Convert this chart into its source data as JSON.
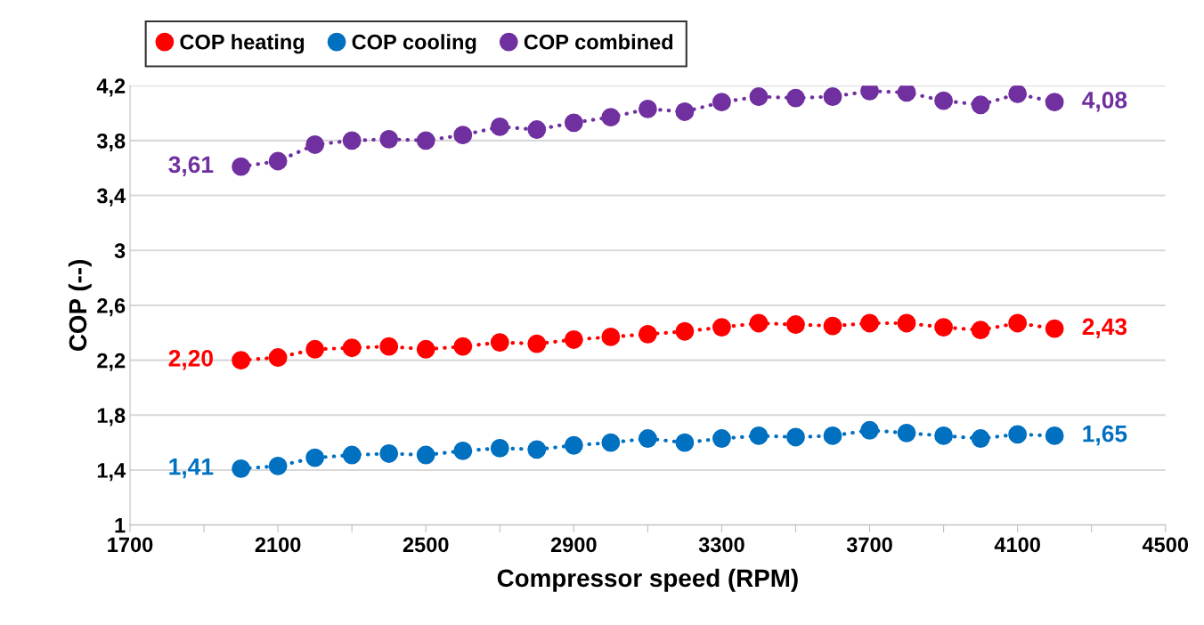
{
  "chart_data": {
    "type": "line",
    "xlabel": "Compressor speed (RPM)",
    "ylabel": "COP (--)",
    "x": [
      2000,
      2100,
      2200,
      2300,
      2400,
      2500,
      2600,
      2700,
      2800,
      2900,
      3000,
      3100,
      3200,
      3300,
      3400,
      3500,
      3600,
      3700,
      3800,
      3900,
      4000,
      4100,
      4200
    ],
    "series": [
      {
        "name": "COP heating",
        "color": "#ff0000",
        "values": [
          2.2,
          2.22,
          2.28,
          2.29,
          2.3,
          2.28,
          2.3,
          2.33,
          2.32,
          2.35,
          2.37,
          2.39,
          2.41,
          2.44,
          2.47,
          2.46,
          2.45,
          2.47,
          2.47,
          2.44,
          2.42,
          2.47,
          2.43
        ],
        "value_labels": [
          "2,20",
          null,
          null,
          null,
          null,
          null,
          null,
          null,
          null,
          null,
          null,
          null,
          null,
          null,
          null,
          null,
          null,
          null,
          null,
          null,
          null,
          null,
          "2,43"
        ]
      },
      {
        "name": "COP cooling",
        "color": "#0070c0",
        "values": [
          1.41,
          1.43,
          1.49,
          1.51,
          1.52,
          1.51,
          1.54,
          1.56,
          1.55,
          1.58,
          1.6,
          1.63,
          1.6,
          1.63,
          1.65,
          1.64,
          1.65,
          1.69,
          1.67,
          1.65,
          1.63,
          1.66,
          1.65
        ],
        "value_labels": [
          "1,41",
          null,
          null,
          null,
          null,
          null,
          null,
          null,
          null,
          null,
          null,
          null,
          null,
          null,
          null,
          null,
          null,
          null,
          null,
          null,
          null,
          null,
          "1,65"
        ]
      },
      {
        "name": "COP combined",
        "color": "#7030a0",
        "values": [
          3.61,
          3.65,
          3.77,
          3.8,
          3.81,
          3.8,
          3.84,
          3.9,
          3.88,
          3.93,
          3.97,
          4.03,
          4.01,
          4.08,
          4.12,
          4.11,
          4.12,
          4.16,
          4.15,
          4.09,
          4.06,
          4.14,
          4.08
        ],
        "value_labels": [
          "3,61",
          null,
          null,
          null,
          null,
          null,
          null,
          null,
          null,
          null,
          null,
          null,
          null,
          null,
          null,
          null,
          null,
          null,
          null,
          null,
          null,
          null,
          "4,08"
        ]
      }
    ],
    "xlim": [
      1700,
      4500
    ],
    "xticks": [
      1700,
      {
        "value": 1900,
        "label": null
      },
      2100,
      {
        "value": 2300,
        "label": null
      },
      2500,
      {
        "value": 2700,
        "label": null
      },
      2900,
      {
        "value": 3100,
        "label": null
      },
      3300,
      {
        "value": 3500,
        "label": null
      },
      3700,
      {
        "value": 3900,
        "label": null
      },
      4100,
      {
        "value": 4300,
        "label": null
      },
      4500
    ],
    "ylim": [
      1,
      4.2
    ],
    "yticks": [
      {
        "value": 1,
        "label": "1"
      },
      {
        "value": 1.4,
        "label": "1,4"
      },
      {
        "value": 1.8,
        "label": "1,8"
      },
      {
        "value": 2.2,
        "label": "2,2"
      },
      {
        "value": 2.6,
        "label": "2,6"
      },
      {
        "value": 3,
        "label": "3"
      },
      {
        "value": 3.4,
        "label": "3,4"
      },
      {
        "value": 3.8,
        "label": "3,8"
      },
      {
        "value": 4.2,
        "label": "4,2"
      }
    ],
    "grid": "y",
    "legend": "top left",
    "marker": "circle",
    "line_style": "dotted"
  }
}
